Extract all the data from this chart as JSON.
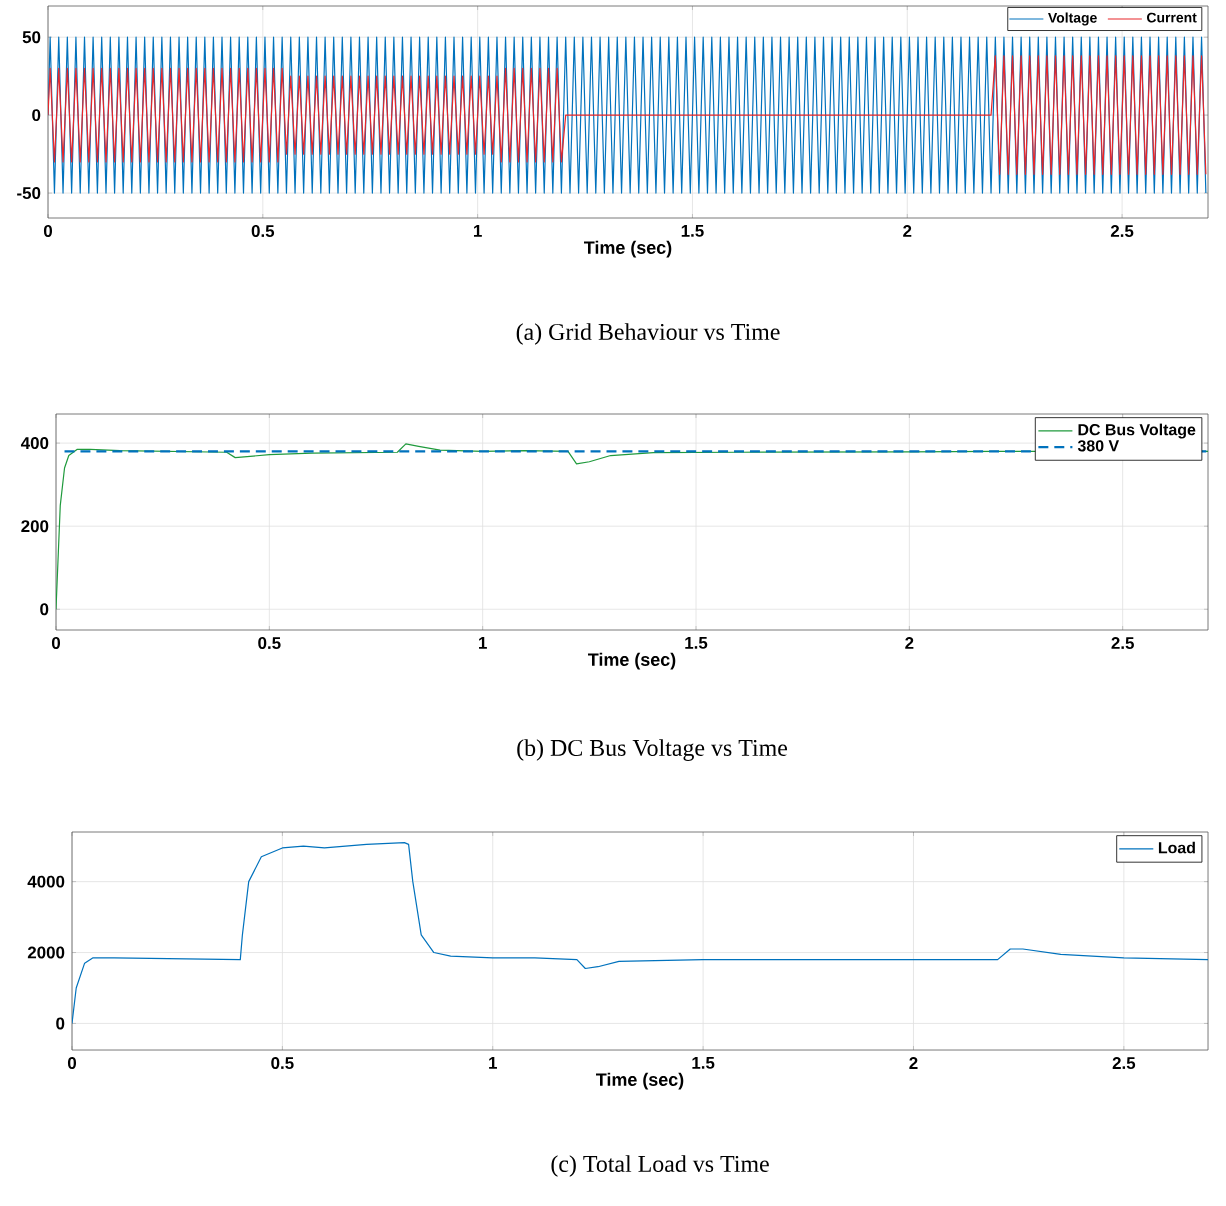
{
  "chart_data": [
    {
      "type": "line",
      "xlabel": "Time (sec)",
      "annotations": [
        "(a) Grid Behaviour vs Time"
      ],
      "xlim": [
        0,
        2.7
      ],
      "ylim": [
        -66,
        70
      ],
      "xticks": [
        0,
        0.5,
        1,
        1.5,
        2,
        2.5
      ],
      "yticks": [
        -50,
        0,
        50
      ],
      "grid": true,
      "legend": "top right",
      "x": [
        0,
        0.005,
        0.015,
        0.025,
        0.035,
        0.045,
        0.055,
        0.065,
        0.075,
        0.085,
        0.095,
        0.105,
        0.115,
        0.125,
        0.135,
        0.145,
        0.155,
        0.165,
        0.175,
        0.185,
        0.195,
        0.205,
        0.215,
        0.225,
        0.235,
        0.245,
        0.255,
        0.265,
        0.275,
        0.285,
        0.295,
        0.305,
        0.315,
        0.325,
        0.335,
        0.345,
        0.355,
        0.365,
        0.375,
        0.385,
        0.395,
        0.405,
        0.415,
        0.425,
        0.435,
        0.445,
        0.455,
        0.465,
        0.475,
        0.485,
        0.495,
        0.505,
        0.515,
        0.525,
        0.535,
        0.545,
        0.555,
        0.565,
        0.575,
        0.585,
        0.595,
        0.605,
        0.615,
        0.625,
        0.635,
        0.645,
        0.655,
        0.665,
        0.675,
        0.685,
        0.695,
        0.705,
        0.715,
        0.725,
        0.735,
        0.745,
        0.755,
        0.765,
        0.775,
        0.785,
        0.795,
        0.805,
        0.815,
        0.825,
        0.835,
        0.845,
        0.855,
        0.865,
        0.875,
        0.885,
        0.895,
        0.905,
        0.915,
        0.925,
        0.935,
        0.945,
        0.955,
        0.965,
        0.975,
        0.985,
        0.995,
        1.005,
        1.015,
        1.025,
        1.035,
        1.045,
        1.055,
        1.065,
        1.075,
        1.085,
        1.095,
        1.105,
        1.115,
        1.125,
        1.135,
        1.145,
        1.155,
        1.165,
        1.175,
        1.185,
        1.195,
        1.205,
        1.215,
        1.225,
        1.235,
        1.245,
        1.255,
        1.265,
        1.275,
        1.285,
        1.295,
        1.305,
        1.315,
        1.325,
        1.335,
        1.345,
        1.355,
        1.365,
        1.375,
        1.385,
        1.395,
        1.405,
        1.415,
        1.425,
        1.435,
        1.445,
        1.455,
        1.465,
        1.475,
        1.485,
        1.495,
        1.505,
        1.515,
        1.525,
        1.535,
        1.545,
        1.555,
        1.565,
        1.575,
        1.585,
        1.595,
        1.605,
        1.615,
        1.625,
        1.635,
        1.645,
        1.655,
        1.665,
        1.675,
        1.685,
        1.695,
        1.705,
        1.715,
        1.725,
        1.735,
        1.745,
        1.755,
        1.765,
        1.775,
        1.785,
        1.795,
        1.805,
        1.815,
        1.825,
        1.835,
        1.845,
        1.855,
        1.865,
        1.875,
        1.885,
        1.895,
        1.905,
        1.915,
        1.925,
        1.935,
        1.945,
        1.955,
        1.965,
        1.975,
        1.985,
        1.995,
        2.005,
        2.015,
        2.025,
        2.035,
        2.045,
        2.055,
        2.065,
        2.075,
        2.085,
        2.095,
        2.105,
        2.115,
        2.125,
        2.135,
        2.145,
        2.155,
        2.165,
        2.175,
        2.185,
        2.195,
        2.205,
        2.215,
        2.225,
        2.235,
        2.245,
        2.255,
        2.265,
        2.275,
        2.285,
        2.295,
        2.305,
        2.315,
        2.325,
        2.335,
        2.345,
        2.355,
        2.365,
        2.375,
        2.385,
        2.395,
        2.405,
        2.415,
        2.425,
        2.435,
        2.445,
        2.455,
        2.465,
        2.475,
        2.485,
        2.495,
        2.505,
        2.515,
        2.525,
        2.535,
        2.545,
        2.555,
        2.565,
        2.575,
        2.585,
        2.595,
        2.605,
        2.615,
        2.625,
        2.635,
        2.645,
        2.655,
        2.665,
        2.675,
        2.685,
        2.695
      ],
      "series": [
        {
          "name": "Voltage",
          "color": "#0072bd",
          "values": [
            0,
            50,
            -50,
            50,
            -50,
            50,
            -50,
            50,
            -50,
            50,
            -50,
            50,
            -50,
            50,
            -50,
            50,
            -50,
            50,
            -50,
            50,
            -50,
            50,
            -50,
            50,
            -50,
            50,
            -50,
            50,
            -50,
            50,
            -50,
            50,
            -50,
            50,
            -50,
            50,
            -50,
            50,
            -50,
            50,
            -50,
            50,
            -50,
            50,
            -50,
            50,
            -50,
            50,
            -50,
            50,
            -50,
            50,
            -50,
            50,
            -50,
            50,
            -50,
            50,
            -50,
            50,
            -50,
            50,
            -50,
            50,
            -50,
            50,
            -50,
            50,
            -50,
            50,
            -50,
            50,
            -50,
            50,
            -50,
            50,
            -50,
            50,
            -50,
            50,
            -50,
            50,
            -50,
            50,
            -50,
            50,
            -50,
            50,
            -50,
            50,
            -50,
            50,
            -50,
            50,
            -50,
            50,
            -50,
            50,
            -50,
            50,
            -50,
            50,
            -50,
            50,
            -50,
            50,
            -50,
            50,
            -50,
            50,
            -50,
            50,
            -50,
            50,
            -50,
            50,
            -50,
            50,
            -50,
            50,
            -50,
            50,
            -50,
            50,
            -50,
            50,
            -50,
            50,
            -50,
            50,
            -50,
            50,
            -50,
            50,
            -50,
            50,
            -50,
            50,
            -50,
            50,
            -50,
            50,
            -50,
            50,
            -50,
            50,
            -50,
            50,
            -50,
            50,
            -50,
            50,
            -50,
            50,
            -50,
            50,
            -50,
            50,
            -50,
            50,
            -50,
            50,
            -50,
            50,
            -50,
            50,
            -50,
            50,
            -50,
            50,
            -50,
            50,
            -50,
            50,
            -50,
            50,
            -50,
            50,
            -50,
            50,
            -50,
            50,
            -50,
            50,
            -50,
            50,
            -50,
            50,
            -50,
            50,
            -50,
            50,
            -50,
            50,
            -50,
            50,
            -50,
            50,
            -50,
            50,
            -50,
            50,
            -50,
            50,
            -50,
            50,
            -50,
            50,
            -50,
            50,
            -50,
            50,
            -50,
            50,
            -50,
            50,
            -50,
            50,
            -50,
            50,
            -50,
            50,
            -50,
            50,
            -50,
            50,
            -50,
            50,
            -50,
            50,
            -50,
            50,
            -50,
            50,
            -50,
            50,
            -50,
            50,
            -50,
            50,
            -50,
            50,
            -50,
            50,
            -50,
            50,
            -50,
            50,
            -50,
            50,
            -50,
            50,
            -50,
            50,
            -50,
            50,
            -50,
            50,
            -50,
            50,
            -50,
            50,
            -50,
            50,
            -50,
            50,
            -50,
            50,
            -50,
            50,
            -50
          ]
        },
        {
          "name": "Current",
          "color": "#e8262a",
          "values": [
            0,
            30,
            -30,
            30,
            -30,
            30,
            -30,
            30,
            -30,
            30,
            -30,
            30,
            -30,
            30,
            -30,
            30,
            -30,
            30,
            -30,
            30,
            -30,
            30,
            -30,
            30,
            -30,
            30,
            -30,
            30,
            -30,
            30,
            -30,
            30,
            -30,
            30,
            -30,
            30,
            -30,
            30,
            -30,
            30,
            -30,
            30,
            -30,
            30,
            -30,
            30,
            -30,
            30,
            -30,
            30,
            -30,
            30,
            -30,
            30,
            -30,
            30,
            -25,
            25,
            -25,
            25,
            -25,
            25,
            -25,
            25,
            -25,
            25,
            -25,
            25,
            -25,
            25,
            -25,
            25,
            -25,
            25,
            -25,
            25,
            -25,
            25,
            -25,
            25,
            -25,
            25,
            -25,
            25,
            -25,
            25,
            -25,
            25,
            -25,
            25,
            -25,
            25,
            -25,
            25,
            -25,
            25,
            -25,
            25,
            -25,
            25,
            -25,
            25,
            -25,
            25,
            -25,
            25,
            -30,
            30,
            -30,
            30,
            -30,
            30,
            -30,
            30,
            -30,
            30,
            -30,
            30,
            -30,
            30,
            -30,
            0,
            0,
            0,
            0,
            0,
            0,
            0,
            0,
            0,
            0,
            0,
            0,
            0,
            0,
            0,
            0,
            0,
            0,
            0,
            0,
            0,
            0,
            0,
            0,
            0,
            0,
            0,
            0,
            0,
            0,
            0,
            0,
            0,
            0,
            0,
            0,
            0,
            0,
            0,
            0,
            0,
            0,
            0,
            0,
            0,
            0,
            0,
            0,
            0,
            0,
            0,
            0,
            0,
            0,
            0,
            0,
            0,
            0,
            0,
            0,
            0,
            0,
            0,
            0,
            0,
            0,
            0,
            0,
            0,
            0,
            0,
            0,
            0,
            0,
            0,
            0,
            0,
            0,
            0,
            0,
            0,
            0,
            0,
            0,
            0,
            0,
            0,
            0,
            0,
            0,
            0,
            0,
            0,
            0,
            0,
            0,
            0,
            0,
            0,
            0,
            38,
            -38,
            38,
            -38,
            38,
            -38,
            38,
            -38,
            38,
            -38,
            38,
            -38,
            38,
            -38,
            38,
            -38,
            38,
            -38,
            38,
            -38,
            38,
            -38,
            38,
            -38,
            38,
            -38,
            38,
            -38,
            38,
            -38,
            38,
            -38,
            38,
            -38,
            38,
            -38,
            38,
            -38,
            38,
            -38,
            38,
            -38,
            38,
            -38,
            38,
            -38,
            38,
            -38,
            38,
            -38
          ]
        }
      ]
    },
    {
      "type": "line",
      "xlabel": "Time (sec)",
      "annotations": [
        "(b) DC Bus Voltage vs Time"
      ],
      "xlim": [
        0,
        2.7
      ],
      "ylim": [
        -50,
        470
      ],
      "xticks": [
        0,
        0.5,
        1,
        1.5,
        2,
        2.5
      ],
      "yticks": [
        0,
        200,
        400
      ],
      "grid": true,
      "legend": "top right",
      "series": [
        {
          "name": "DC Bus Voltage",
          "color": "#1f9a3c",
          "x": [
            0,
            0.01,
            0.02,
            0.03,
            0.05,
            0.08,
            0.15,
            0.4,
            0.42,
            0.5,
            0.6,
            0.8,
            0.82,
            0.85,
            0.9,
            1.0,
            1.1,
            1.2,
            1.22,
            1.25,
            1.3,
            1.4,
            1.6,
            2.0,
            2.2,
            2.7
          ],
          "values": [
            0,
            250,
            340,
            370,
            385,
            385,
            382,
            378,
            365,
            372,
            376,
            378,
            398,
            392,
            383,
            380,
            382,
            380,
            350,
            355,
            370,
            377,
            378,
            379,
            380,
            380
          ]
        },
        {
          "name": "380 V",
          "color": "#0072bd",
          "line_style": "dashed",
          "x": [
            0.02,
            2.7
          ],
          "values": [
            380,
            380
          ]
        }
      ]
    },
    {
      "type": "line",
      "xlabel": "Time (sec)",
      "annotations": [
        "(c) Total Load vs Time"
      ],
      "xlim": [
        0,
        2.7
      ],
      "ylim": [
        -750,
        5400
      ],
      "xticks": [
        0,
        0.5,
        1,
        1.5,
        2,
        2.5
      ],
      "yticks": [
        0,
        2000,
        4000
      ],
      "grid": true,
      "legend": "top right",
      "x": [
        0,
        0.01,
        0.03,
        0.05,
        0.1,
        0.4,
        0.405,
        0.42,
        0.45,
        0.5,
        0.55,
        0.6,
        0.7,
        0.79,
        0.8,
        0.81,
        0.83,
        0.86,
        0.9,
        1.0,
        1.1,
        1.2,
        1.22,
        1.25,
        1.3,
        1.5,
        2.0,
        2.2,
        2.23,
        2.26,
        2.35,
        2.5,
        2.7
      ],
      "series": [
        {
          "name": "Load",
          "color": "#0072bd",
          "values": [
            0,
            1000,
            1700,
            1850,
            1850,
            1800,
            2500,
            4000,
            4700,
            4950,
            5000,
            4950,
            5050,
            5100,
            5050,
            4000,
            2500,
            2000,
            1900,
            1850,
            1850,
            1800,
            1550,
            1600,
            1750,
            1800,
            1800,
            1800,
            2100,
            2100,
            1950,
            1850,
            1800
          ]
        }
      ]
    }
  ]
}
